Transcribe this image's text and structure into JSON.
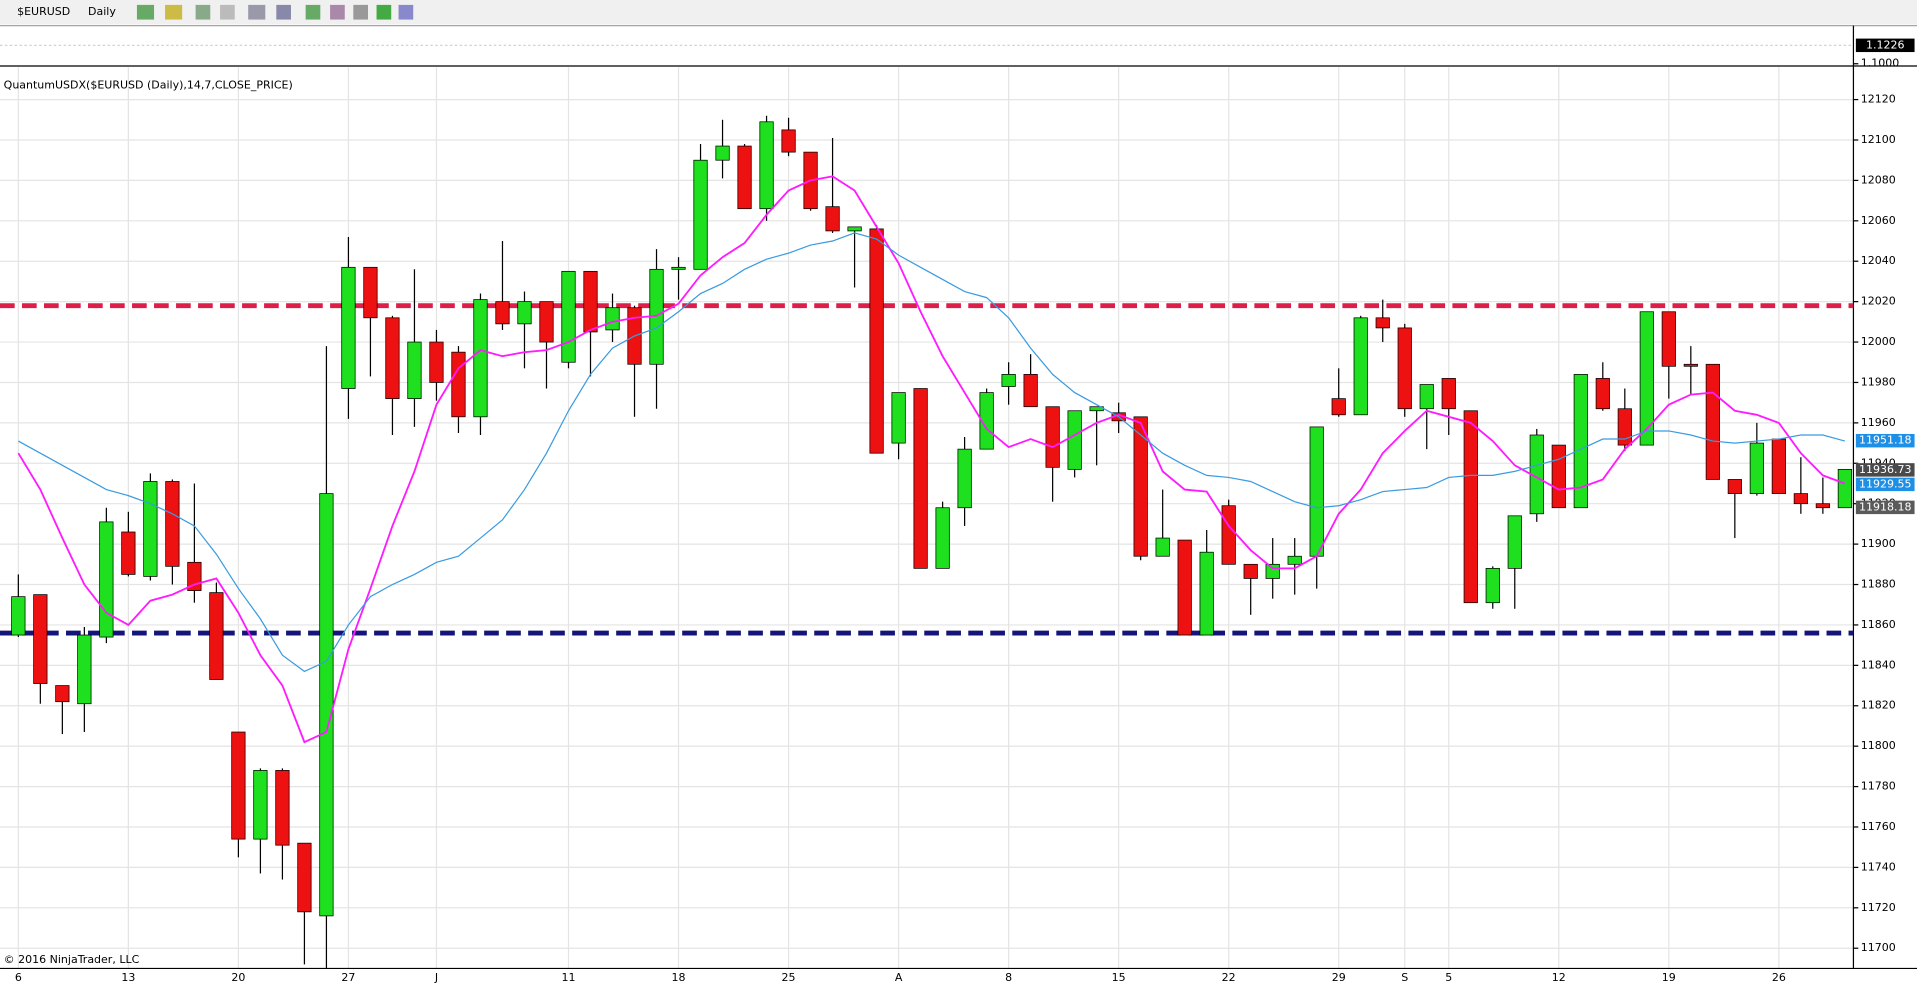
{
  "toolbar": {
    "symbol": "$EURUSD",
    "interval": "Daily"
  },
  "footer": "© 2016 NinjaTrader, LLC",
  "top_panel": {
    "ylim": [
      1.0987,
      1.1452
    ],
    "yticks": [
      {
        "value": 1.1,
        "label": "1.1000"
      }
    ],
    "last": 1.1226
  },
  "chart_data": {
    "type": "candlestick",
    "title": "QuantumUSDX($EURUSD (Daily),14,7,CLOSE_PRICE)",
    "categories": [
      "6",
      null,
      null,
      null,
      null,
      "13",
      null,
      null,
      null,
      null,
      "20",
      null,
      null,
      null,
      null,
      "27",
      null,
      null,
      null,
      "J",
      null,
      null,
      null,
      null,
      null,
      "11",
      null,
      null,
      null,
      null,
      "18",
      null,
      null,
      null,
      null,
      "25",
      null,
      null,
      null,
      null,
      "A",
      null,
      null,
      null,
      null,
      "8",
      null,
      null,
      null,
      null,
      "15",
      null,
      null,
      null,
      null,
      "22",
      null,
      null,
      null,
      null,
      "29",
      null,
      null,
      "S",
      null,
      "5",
      null,
      null,
      null,
      null,
      "12",
      null,
      null,
      null,
      null,
      "19",
      null,
      null,
      null,
      null,
      "26",
      null,
      null,
      null
    ],
    "open": [
      11855,
      11875,
      11830,
      11821,
      11854,
      11906,
      11884,
      11931,
      11891,
      11876,
      11807,
      11754,
      11788,
      11752,
      11716,
      11977,
      12037,
      12012,
      11972,
      12000,
      11995,
      11963,
      12020,
      12009,
      12020,
      11990,
      12035,
      12006,
      12017,
      11989,
      12036,
      12036,
      12090,
      12097,
      12066,
      12105,
      12094,
      12067,
      12055,
      12056,
      11950,
      11977,
      11888,
      11918,
      11947,
      11978,
      11984,
      11968,
      11937,
      11966,
      11965,
      11963,
      11894,
      11902,
      11855,
      11919,
      11890,
      11883,
      11890,
      11894,
      11972,
      11964,
      12012,
      12007,
      11967,
      11982,
      11966,
      11871,
      11888,
      11915,
      11949,
      11918,
      11982,
      11967,
      11949,
      12015,
      11989,
      11989,
      11932,
      11925,
      11952,
      11925,
      11920,
      11918
    ],
    "high": [
      11885,
      11875,
      11830,
      11859,
      11918,
      11916,
      11935,
      11932,
      11930,
      11881,
      11807,
      11789,
      11789,
      11752,
      11998,
      12052,
      12037,
      12013,
      12036,
      12006,
      11998,
      12024,
      12050,
      12025,
      12020,
      12035,
      12035,
      12024,
      12018,
      12046,
      12042,
      12098,
      12110,
      12098,
      12112,
      12111,
      12094,
      12101,
      12057,
      12058,
      11975,
      11977,
      11921,
      11953,
      11977,
      11990,
      11994,
      11968,
      11966,
      11968,
      11970,
      11963,
      11927,
      11902,
      11907,
      11922,
      11890,
      11903,
      11903,
      11958,
      11987,
      12013,
      12021,
      12009,
      11979,
      11982,
      11966,
      11889,
      11914,
      11957,
      11949,
      11984,
      11990,
      11977,
      12015,
      12015,
      11998,
      11989,
      11932,
      11960,
      11952,
      11943,
      11933,
      11937
    ],
    "low": [
      11854,
      11821,
      11806,
      11807,
      11851,
      11884,
      11882,
      11880,
      11871,
      11833,
      11745,
      11737,
      11734,
      11692,
      11690,
      11962,
      11983,
      11954,
      11958,
      11971,
      11955,
      11954,
      12006,
      11987,
      11977,
      11987,
      11983,
      12000,
      11963,
      11967,
      12021,
      12036,
      12081,
      12066,
      12060,
      12092,
      12065,
      12054,
      12027,
      11945,
      11942,
      11888,
      11888,
      11909,
      11947,
      11969,
      11968,
      11921,
      11933,
      11939,
      11955,
      11892,
      11894,
      11855,
      11855,
      11890,
      11865,
      11873,
      11875,
      11878,
      11963,
      11964,
      12000,
      11963,
      11947,
      11954,
      11871,
      11868,
      11868,
      11911,
      11918,
      11918,
      11966,
      11946,
      11949,
      11972,
      11974,
      11932,
      11903,
      11924,
      11925,
      11915,
      11915,
      11918
    ],
    "close": [
      11874,
      11831,
      11822,
      11855,
      11911,
      11885,
      11931,
      11889,
      11877,
      11833,
      11754,
      11788,
      11751,
      11718,
      11925,
      12037,
      12012,
      11972,
      12000,
      11980,
      11963,
      12021,
      12009,
      12020,
      12000,
      12035,
      12005,
      12017,
      11989,
      12036,
      12037,
      12090,
      12097,
      12066,
      12109,
      12094,
      12066,
      12055,
      12057,
      11945,
      11975,
      11888,
      11918,
      11947,
      11975,
      11984,
      11968,
      11938,
      11966,
      11968,
      11961,
      11894,
      11903,
      11855,
      11896,
      11890,
      11883,
      11890,
      11894,
      11958,
      11964,
      12012,
      12007,
      11967,
      11979,
      11967,
      11871,
      11888,
      11914,
      11954,
      11918,
      11984,
      11967,
      11949,
      12015,
      11988,
      11988,
      11932,
      11925,
      11950,
      11925,
      11920,
      11918,
      11937
    ],
    "up_color": "#1ee01e",
    "down_color": "#ee1111",
    "lines": [
      {
        "color": "#ff1aff",
        "values": [
          11945,
          11927,
          11903,
          11880,
          11866,
          11860,
          11872,
          11875,
          11880,
          11883,
          11866,
          11845,
          11830,
          11802,
          11807,
          11848,
          11878,
          11909,
          11936,
          11969,
          11987,
          11996,
          11993,
          11995,
          11996,
          12000,
          12006,
          12010,
          12012,
          12013,
          12019,
          12033,
          12042,
          12049,
          12063,
          12075,
          12080,
          12082,
          12075,
          12057,
          12039,
          12015,
          11993,
          11975,
          11957,
          11948,
          11952,
          11948,
          11954,
          11960,
          11964,
          11960,
          11936,
          11927,
          11926,
          11909,
          11897,
          11888,
          11888,
          11894,
          11915,
          11927,
          11945,
          11956,
          11966,
          11963,
          11960,
          11951,
          11939,
          11933,
          11927,
          11928,
          11932,
          11947,
          11957,
          11969,
          11974,
          11975,
          11966,
          11964,
          11960,
          11945,
          11934,
          11930
        ]
      },
      {
        "color": "#3a9be0",
        "values": [
          11951,
          11945,
          11939,
          11933,
          11927,
          11924,
          11920,
          11915,
          11909,
          11895,
          11878,
          11863,
          11845,
          11837,
          11842,
          11860,
          11874,
          11880,
          11885,
          11891,
          11894,
          11903,
          11912,
          11927,
          11945,
          11966,
          11984,
          11997,
          12003,
          12007,
          12015,
          12024,
          12029,
          12036,
          12041,
          12044,
          12048,
          12050,
          12054,
          12051,
          12043,
          12037,
          12031,
          12025,
          12022,
          12012,
          11997,
          11984,
          11975,
          11969,
          11963,
          11954,
          11945,
          11939,
          11934,
          11933,
          11931,
          11926,
          11921,
          11918,
          11919,
          11922,
          11926,
          11927,
          11928,
          11933,
          11934,
          11934,
          11936,
          11939,
          11942,
          11947,
          11952,
          11952,
          11956,
          11956,
          11954,
          11951,
          11950,
          11951,
          11952,
          11954,
          11954,
          11951
        ]
      }
    ],
    "hlines": [
      {
        "value": 12018,
        "color": "#dc1e48"
      },
      {
        "value": 11856,
        "color": "#14147a"
      }
    ],
    "price_markers": [
      {
        "value": 11951.18,
        "color": "#1e8fe6"
      },
      {
        "value": 11936.73,
        "color": "#4a4a4a"
      },
      {
        "value": 11929.55,
        "color": "#1e8fe6"
      },
      {
        "value": 11918.18,
        "color": "#5a5a5a"
      }
    ],
    "ylim": [
      11690,
      12136
    ],
    "yticks": [
      11700,
      11720,
      11740,
      11760,
      11780,
      11800,
      11820,
      11840,
      11860,
      11880,
      11900,
      11920,
      11940,
      11960,
      11980,
      12000,
      12020,
      12040,
      12060,
      12080,
      12100,
      12120
    ],
    "grid": true
  }
}
